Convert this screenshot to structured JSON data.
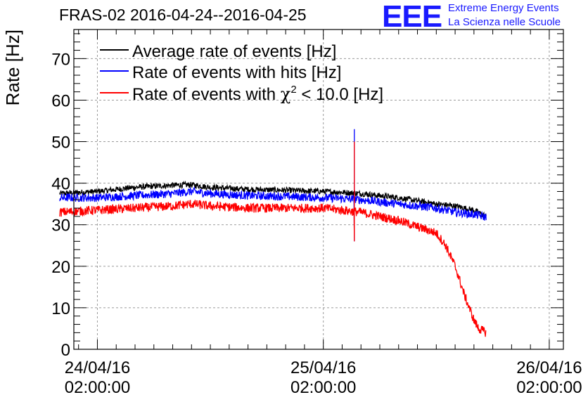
{
  "header": {
    "title": "FRAS-02 2016-04-24--2016-04-25",
    "logo_text": "EEE",
    "logo_line1": "Extreme Energy Events",
    "logo_line2": "La Scienza nelle Scuole"
  },
  "colors": {
    "average": "#000000",
    "hits": "#0000ff",
    "chi2": "#ff0000",
    "grid": "#9a9a9a",
    "logo": "#1a1aff"
  },
  "chart_data": {
    "type": "line",
    "title": "FRAS-02 2016-04-24--2016-04-25",
    "ylabel": "Rate [Hz]",
    "xlabel": "",
    "ylim": [
      0,
      77
    ],
    "xlim_hours": [
      -2.5,
      49.5
    ],
    "yticks": [
      0,
      10,
      20,
      30,
      40,
      50,
      60,
      70
    ],
    "xticks": [
      {
        "hour": 0,
        "date": "24/04/16",
        "time": "02:00:00"
      },
      {
        "hour": 24,
        "date": "25/04/16",
        "time": "02:00:00"
      },
      {
        "hour": 48,
        "date": "26/04/16",
        "time": "02:00:00"
      }
    ],
    "grid": true,
    "legend_position": "top-left",
    "series": [
      {
        "key": "average",
        "name": "Average rate of events [Hz]",
        "x": [
          -4,
          0,
          4,
          8,
          10,
          12,
          16,
          20,
          24,
          26,
          28,
          32,
          36,
          38,
          40,
          41.3
        ],
        "y": [
          37.5,
          38.0,
          39.0,
          39.5,
          39.6,
          39.0,
          38.5,
          38.3,
          38.0,
          37.8,
          37.5,
          36.5,
          35.0,
          34.5,
          33.5,
          32.0
        ],
        "noise": 0.7
      },
      {
        "key": "hits",
        "name": "Rate of events with hits [Hz]",
        "x": [
          -4,
          0,
          4,
          8,
          10,
          12,
          16,
          20,
          24,
          26,
          28,
          32,
          36,
          38,
          40,
          41.3
        ],
        "y": [
          36.5,
          36.5,
          37.0,
          37.5,
          38.0,
          37.5,
          37.0,
          36.8,
          36.5,
          36.3,
          36.0,
          35.0,
          34.0,
          33.0,
          32.5,
          31.8
        ],
        "noise": 1.0,
        "spike": {
          "x": 27.3,
          "low": 26.0,
          "high": 53.0
        }
      },
      {
        "key": "chi2",
        "name": "Rate of events with χ² < 10.0 [Hz]",
        "legend_prefix": "Rate of events with ",
        "legend_symbol": "χ",
        "legend_sup": "2",
        "legend_suffix": " < 10.0 [Hz]",
        "x": [
          -4,
          0,
          4,
          8,
          10,
          12,
          16,
          20,
          24,
          26,
          28,
          30,
          32,
          34,
          36,
          37,
          38,
          39,
          40,
          40.5,
          41.3
        ],
        "y": [
          33.0,
          33.5,
          34.0,
          34.5,
          35.0,
          34.5,
          34.0,
          34.0,
          34.0,
          33.5,
          33.0,
          32.0,
          31.0,
          29.5,
          28.0,
          25.0,
          20.0,
          13.0,
          7.0,
          5.0,
          4.0
        ],
        "noise": 1.1,
        "spike": {
          "x": 27.3,
          "low": 26.0,
          "high": 50.0
        }
      }
    ]
  }
}
